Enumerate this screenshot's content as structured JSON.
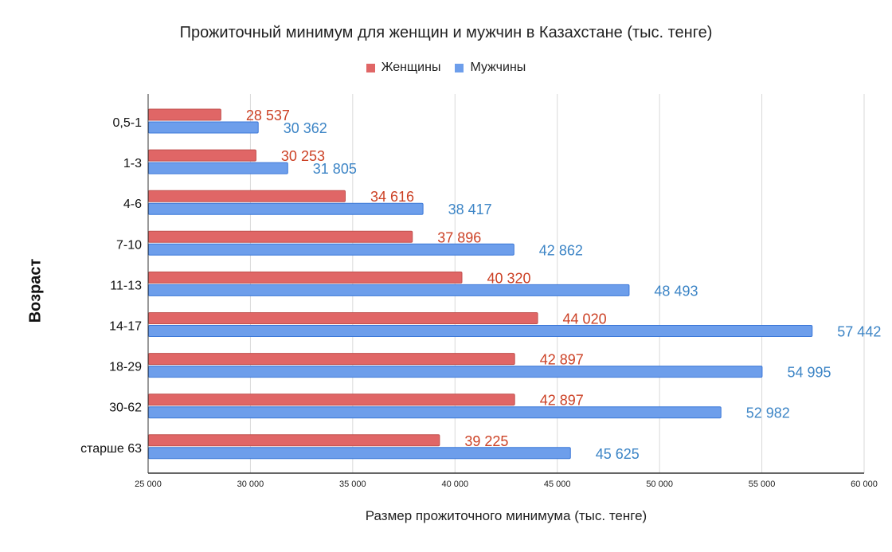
{
  "chart_data": {
    "type": "bar",
    "orientation": "horizontal",
    "title": "Прожиточный минимум для женщин и мужчин в Казахстане (тыс. тенге)",
    "xlabel": "Размер прожиточного минимума (тыс. тенге)",
    "ylabel": "Возраст",
    "categories": [
      "0,5-1",
      "1-3",
      "4-6",
      "7-10",
      "11-13",
      "14-17",
      "18-29",
      "30-62",
      "старше 63"
    ],
    "series": [
      {
        "name": "Женщины",
        "color": "#e06666",
        "values": [
          28537,
          30253,
          34616,
          37896,
          40320,
          44020,
          42897,
          42897,
          39225
        ],
        "labels": [
          "28 537",
          "30 253",
          "34 616",
          "37 896",
          "40 320",
          "44 020",
          "42 897",
          "42 897",
          "39 225"
        ]
      },
      {
        "name": "Мужчины",
        "color": "#6d9eeb",
        "values": [
          30362,
          31805,
          38417,
          42862,
          48493,
          57442,
          54995,
          52982,
          45625
        ],
        "labels": [
          "30 362",
          "31 805",
          "38 417",
          "42 862",
          "48 493",
          "57 442",
          "54 995",
          "52 982",
          "45 625"
        ]
      }
    ],
    "xlim": [
      25000,
      60000
    ],
    "xticks": [
      25000,
      30000,
      35000,
      40000,
      45000,
      50000,
      55000,
      60000
    ],
    "xtick_labels": [
      "25 000",
      "30 000",
      "35 000",
      "40 000",
      "45 000",
      "50 000",
      "55 000",
      "60 000"
    ],
    "grid": "vertical",
    "legend_position": "top"
  }
}
